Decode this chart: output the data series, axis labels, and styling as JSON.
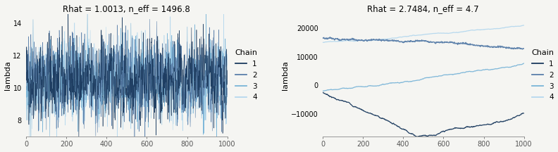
{
  "plot1_title": "Rhat = 1.0013, n_eff = 1496.8",
  "plot2_title": "Rhat = 2.7484, n_eff = 4.7",
  "ylabel": "lambda",
  "n_iter": 1000,
  "chain_colors": [
    "#1b3a5e",
    "#5a7faa",
    "#7ab5d8",
    "#b5d8ee"
  ],
  "chain_labels": [
    "1",
    "2",
    "3",
    "4"
  ],
  "plot1_ylim": [
    7.0,
    14.6
  ],
  "plot1_yticks": [
    8,
    10,
    12,
    14
  ],
  "plot2_ylim": [
    -18000,
    25000
  ],
  "plot2_yticks": [
    -10000,
    0,
    10000,
    20000
  ],
  "xticks": [
    0,
    200,
    400,
    600,
    800,
    1000
  ],
  "bg_color": "#f5f5f2",
  "legend_title": "Chain"
}
